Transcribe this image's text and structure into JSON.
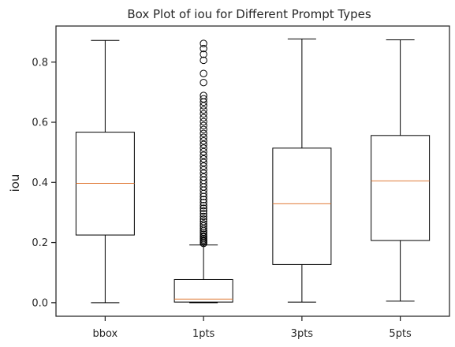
{
  "chart_data": {
    "type": "box",
    "title": "Box Plot of iou for Different Prompt Types",
    "xlabel": "",
    "ylabel": "iou",
    "ylim": [
      -0.045,
      0.92
    ],
    "yticks": [
      0.0,
      0.2,
      0.4,
      0.6,
      0.8
    ],
    "ytick_labels": [
      "0.0",
      "0.2",
      "0.4",
      "0.6",
      "0.8"
    ],
    "grid": false,
    "categories": [
      "bbox",
      "1pts",
      "3pts",
      "5pts"
    ],
    "boxes": [
      {
        "category": "bbox",
        "whisker_low": 0.0,
        "q1": 0.225,
        "median": 0.397,
        "q3": 0.567,
        "whisker_high": 0.872,
        "outliers": []
      },
      {
        "category": "1pts",
        "whisker_low": 0.0,
        "q1": 0.002,
        "median": 0.012,
        "q3": 0.077,
        "whisker_high": 0.192,
        "outliers": [
          0.197,
          0.201,
          0.205,
          0.209,
          0.213,
          0.218,
          0.222,
          0.228,
          0.234,
          0.24,
          0.247,
          0.255,
          0.262,
          0.27,
          0.278,
          0.287,
          0.296,
          0.305,
          0.314,
          0.323,
          0.333,
          0.343,
          0.353,
          0.363,
          0.374,
          0.385,
          0.396,
          0.407,
          0.418,
          0.43,
          0.442,
          0.454,
          0.466,
          0.478,
          0.49,
          0.502,
          0.514,
          0.526,
          0.538,
          0.55,
          0.563,
          0.576,
          0.589,
          0.602,
          0.615,
          0.628,
          0.641,
          0.655,
          0.667,
          0.678,
          0.689,
          0.732,
          0.762,
          0.806,
          0.826,
          0.845,
          0.862
        ]
      },
      {
        "category": "3pts",
        "whisker_low": 0.002,
        "q1": 0.127,
        "median": 0.329,
        "q3": 0.514,
        "whisker_high": 0.877,
        "outliers": []
      },
      {
        "category": "5pts",
        "whisker_low": 0.005,
        "q1": 0.207,
        "median": 0.405,
        "q3": 0.556,
        "whisker_high": 0.874,
        "outliers": []
      }
    ],
    "colors": {
      "box": "#000000",
      "median": "#e07b39",
      "text": "#262626"
    }
  }
}
